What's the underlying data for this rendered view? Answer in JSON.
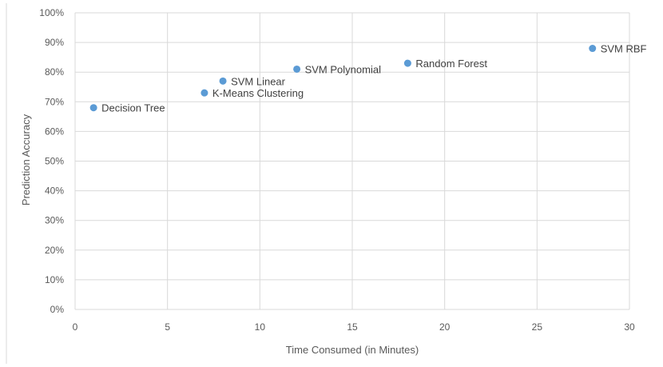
{
  "chart_data": {
    "type": "scatter",
    "title": "",
    "xlabel": "Time Consumed (in Minutes)",
    "ylabel": "Prediction Accuracy",
    "xlim": [
      0,
      30
    ],
    "ylim": [
      0,
      100
    ],
    "x_ticks": [
      0,
      5,
      10,
      15,
      20,
      25,
      30
    ],
    "y_ticks": [
      0,
      10,
      20,
      30,
      40,
      50,
      60,
      70,
      80,
      90,
      100
    ],
    "y_tick_suffix": "%",
    "grid": true,
    "legend": "none",
    "marker_color": "#5b9bd5",
    "points": [
      {
        "label": "Decision Tree",
        "x": 1,
        "y": 68
      },
      {
        "label": "K-Means Clustering",
        "x": 7,
        "y": 73
      },
      {
        "label": "SVM Linear",
        "x": 8,
        "y": 77
      },
      {
        "label": "SVM Polynomial",
        "x": 12,
        "y": 81
      },
      {
        "label": "Random Forest",
        "x": 18,
        "y": 83
      },
      {
        "label": "SVM RBF",
        "x": 28,
        "y": 88
      }
    ]
  }
}
